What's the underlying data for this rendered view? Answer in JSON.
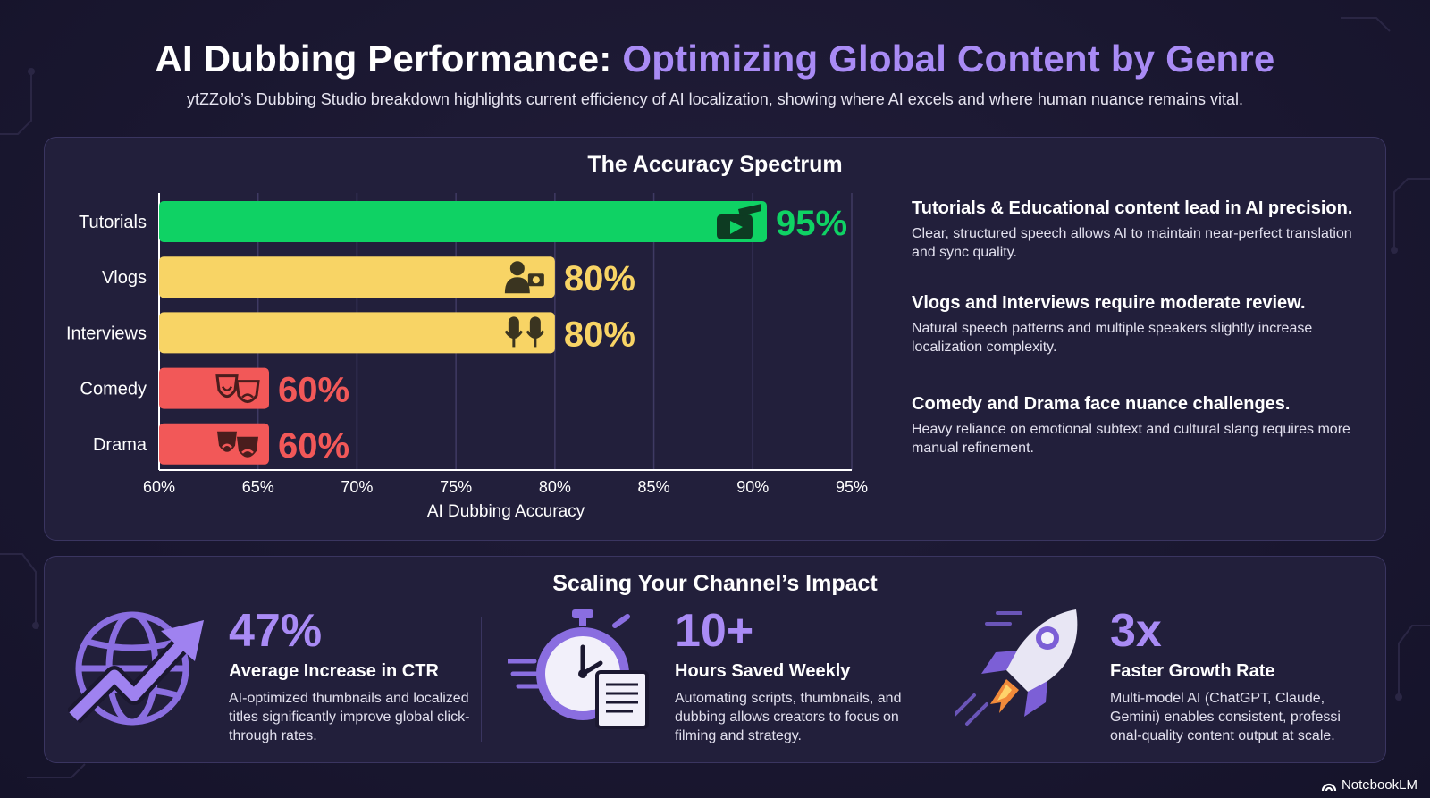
{
  "header": {
    "title_main": "AI Dubbing Performance: ",
    "title_accent": "Optimizing Global Content by Genre",
    "subtitle": "ytZZolo’s Dubbing Studio breakdown highlights current efficiency of AI localization, showing where AI excels and where human nuance remains vital."
  },
  "accuracy_panel": {
    "title": "The Accuracy Spectrum"
  },
  "chart_data": {
    "type": "bar",
    "orientation": "horizontal",
    "categories": [
      "Tutorials",
      "Vlogs",
      "Interviews",
      "Comedy",
      "Drama"
    ],
    "values": [
      95,
      80,
      80,
      60,
      60
    ],
    "value_labels": [
      "95%",
      "80%",
      "80%",
      "60%",
      "60%"
    ],
    "xlabel": "AI Dubbing Accuracy",
    "xlim": [
      60,
      95
    ],
    "xticks": [
      "60%",
      "65%",
      "70%",
      "75%",
      "80%",
      "85%",
      "90%",
      "95%"
    ],
    "grid": true,
    "bar_colors": [
      "#0fd264",
      "#f8d465",
      "#f8d465",
      "#f25858",
      "#f25858"
    ],
    "bar_icons": [
      "play-graduation-icon",
      "vlogger-camera-icon",
      "microphones-icon",
      "theater-masks-icon",
      "sad-masks-icon"
    ]
  },
  "insights": [
    {
      "heading": "Tutorials & Educational content lead in AI precision.",
      "body": "Clear, structured speech allows AI to maintain near-perfect translation and sync quality."
    },
    {
      "heading": "Vlogs and Interviews require moderate review.",
      "body": "Natural speech patterns and multiple speakers slightly increase localization complexity."
    },
    {
      "heading": "Comedy and Drama face nuance challenges.",
      "body": "Heavy reliance on emotional subtext and cultural slang requires more manual refinement."
    }
  ],
  "impact_panel": {
    "title": "Scaling Your Channel’s Impact"
  },
  "stats": [
    {
      "value": "47%",
      "label": "Average Increase in CTR",
      "desc": "AI-optimized thumbnails and localized titles significantly improve global click-through rates.",
      "icon": "globe-growth-arrow-icon"
    },
    {
      "value": "10+",
      "label": "Hours Saved Weekly",
      "desc": "Automating scripts, thumbnails, and dubbing allows creators to focus on filming and strategy.",
      "icon": "stopwatch-document-icon"
    },
    {
      "value": "3x",
      "label": "Faster Growth Rate",
      "desc": "Multi-model AI (ChatGPT, Claude, Gemini) enables consistent, professi onal-quality content output at scale.",
      "icon": "rocket-icon"
    }
  ],
  "colors": {
    "accent": "#a98bf5",
    "green": "#0fd264",
    "yellow": "#f8d465",
    "red": "#f25858",
    "panel": "#221f3b",
    "background": "#1b1830"
  },
  "brand": {
    "label": "NotebookLM"
  }
}
